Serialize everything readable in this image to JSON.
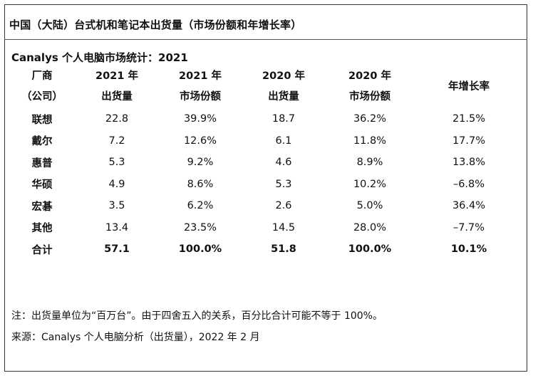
{
  "title": "中国（大陆）台式机和笔记本出货量（市场份额和年增长率）",
  "subtitle": "Canalys 个人电脑市场统计：2021",
  "table": {
    "headers": [
      {
        "line1": "厂商",
        "line2": "（公司）"
      },
      {
        "line1": "2021 年",
        "line2": "出货量"
      },
      {
        "line1": "2021 年",
        "line2": "市场份额"
      },
      {
        "line1": "2020 年",
        "line2": "出货量"
      },
      {
        "line1": "2020 年",
        "line2": "市场份额"
      },
      {
        "line1": "年增长率",
        "line2": ""
      }
    ],
    "rows": [
      {
        "vendor": "联想",
        "ship2021": "22.8",
        "share2021": "39.9%",
        "ship2020": "18.7",
        "share2020": "36.2%",
        "growth": "21.5%"
      },
      {
        "vendor": "戴尔",
        "ship2021": "7.2",
        "share2021": "12.6%",
        "ship2020": "6.1",
        "share2020": "11.8%",
        "growth": "17.7%"
      },
      {
        "vendor": "惠普",
        "ship2021": "5.3",
        "share2021": "9.2%",
        "ship2020": "4.6",
        "share2020": "8.9%",
        "growth": "13.8%"
      },
      {
        "vendor": "华硕",
        "ship2021": "4.9",
        "share2021": "8.6%",
        "ship2020": "5.3",
        "share2020": "10.2%",
        "growth": "–6.8%"
      },
      {
        "vendor": "宏碁",
        "ship2021": "3.5",
        "share2021": "6.2%",
        "ship2020": "2.6",
        "share2020": "5.0%",
        "growth": "36.4%"
      },
      {
        "vendor": "其他",
        "ship2021": "13.4",
        "share2021": "23.5%",
        "ship2020": "14.5",
        "share2020": "28.0%",
        "growth": "–7.7%"
      }
    ],
    "total": {
      "vendor": "合计",
      "ship2021": "57.1",
      "share2021": "100.0%",
      "ship2020": "51.8",
      "share2020": "100.0%",
      "growth": "10.1%"
    }
  },
  "note": "注：出货量单位为“百万台”。由于四舍五入的关系，百分比合计可能不等于 100%。",
  "source": "来源：Canalys 个人电脑分析（出货量），2022 年 2 月"
}
